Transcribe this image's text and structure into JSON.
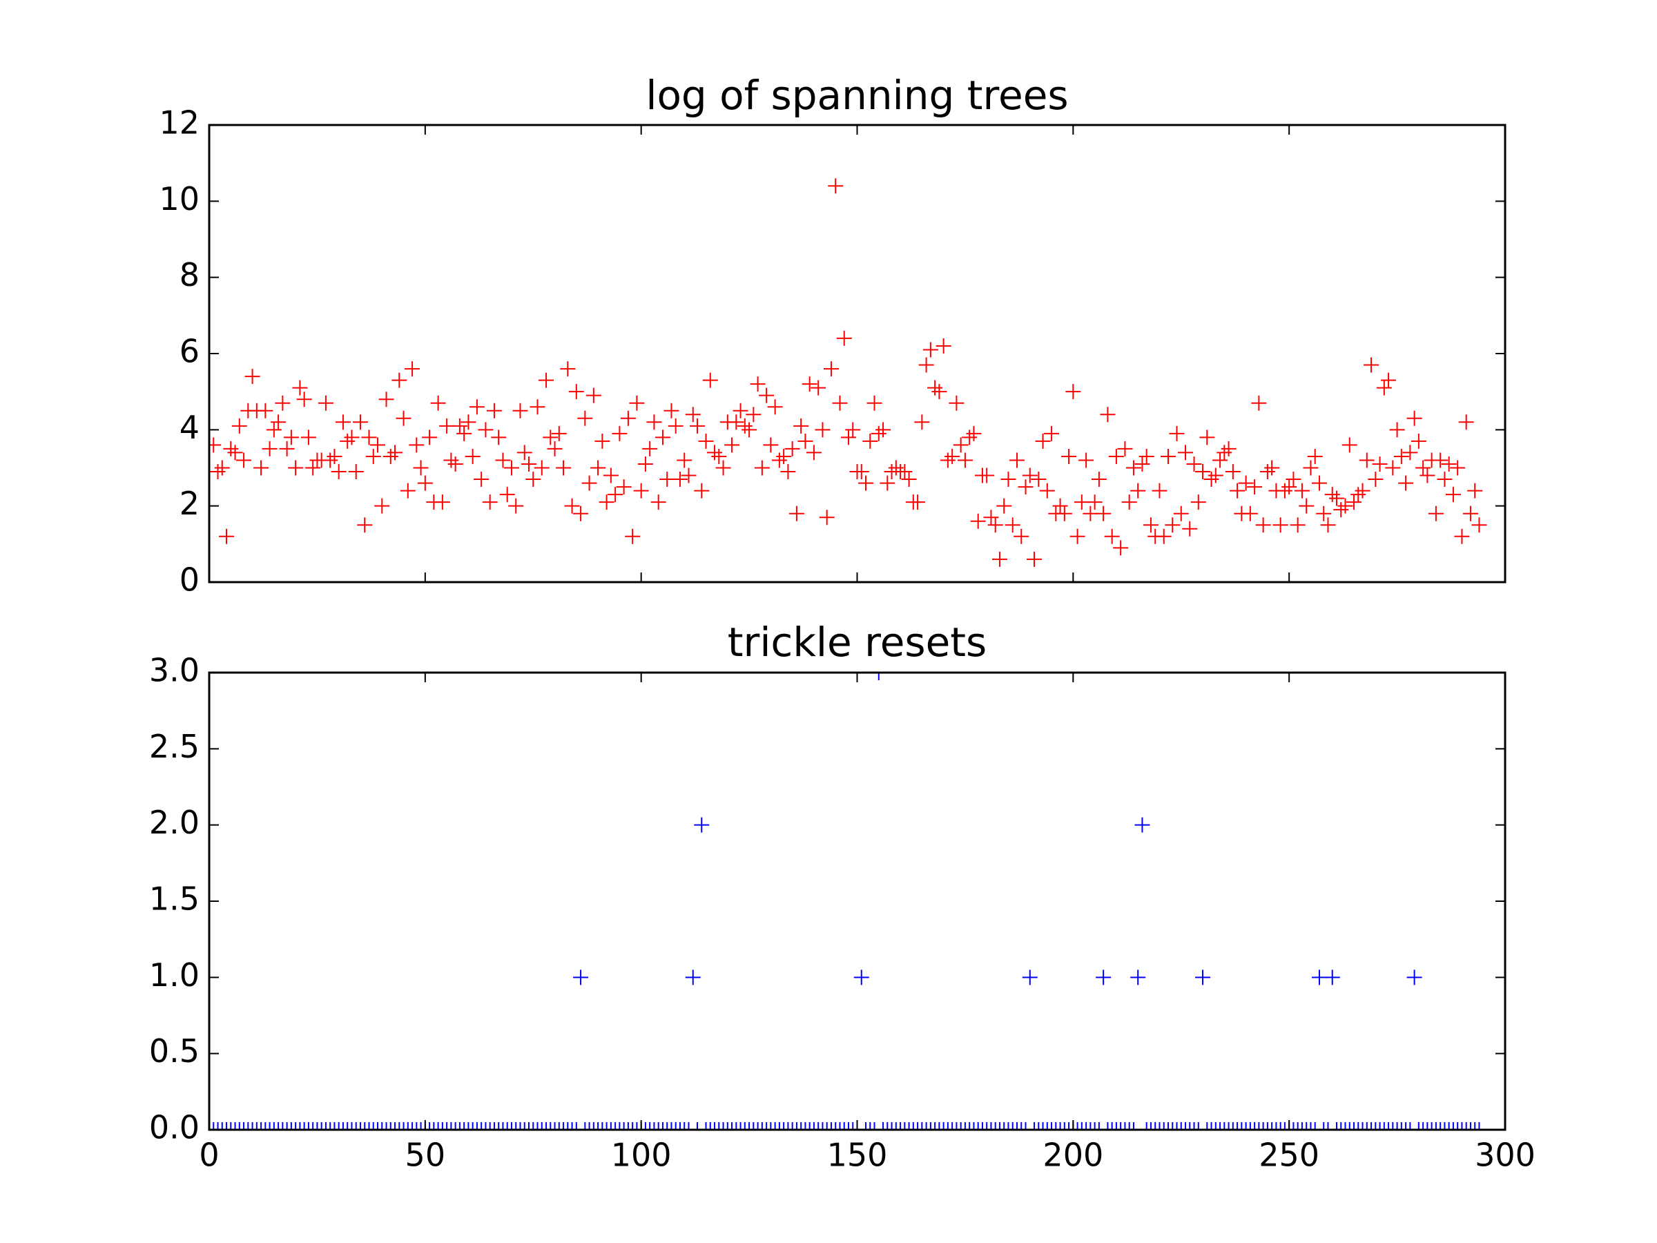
{
  "chart_data": [
    {
      "type": "scatter",
      "title": "log of spanning trees",
      "marker": "+",
      "color": "#ff0000",
      "x": [
        1,
        2,
        3,
        4,
        5,
        6,
        7,
        8,
        9,
        10,
        11,
        12,
        13,
        14,
        15,
        16,
        17,
        18,
        19,
        20,
        21,
        22,
        23,
        24,
        25,
        26,
        27,
        28,
        29,
        30,
        31,
        32,
        33,
        34,
        35,
        36,
        37,
        38,
        39,
        40,
        41,
        42,
        43,
        44,
        45,
        46,
        47,
        48,
        49,
        50,
        51,
        52,
        53,
        54,
        55,
        56,
        57,
        58,
        59,
        60,
        61,
        62,
        63,
        64,
        65,
        66,
        67,
        68,
        69,
        70,
        71,
        72,
        73,
        74,
        75,
        76,
        77,
        78,
        79,
        80,
        81,
        82,
        83,
        84,
        85,
        86,
        87,
        88,
        89,
        90,
        91,
        92,
        93,
        94,
        95,
        96,
        97,
        98,
        99,
        100,
        101,
        102,
        103,
        104,
        105,
        106,
        107,
        108,
        109,
        110,
        111,
        112,
        113,
        114,
        115,
        116,
        117,
        118,
        119,
        120,
        121,
        122,
        123,
        124,
        125,
        126,
        127,
        128,
        129,
        130,
        131,
        132,
        133,
        134,
        135,
        136,
        137,
        138,
        139,
        140,
        141,
        142,
        143,
        144,
        145,
        146,
        147,
        148,
        149,
        150,
        151,
        152,
        153,
        154,
        155,
        156,
        157,
        158,
        159,
        160,
        161,
        162,
        163,
        164,
        165,
        166,
        167,
        168,
        169,
        170,
        171,
        172,
        173,
        174,
        175,
        176,
        177,
        178,
        179,
        180,
        181,
        182,
        183,
        184,
        185,
        186,
        187,
        188,
        189,
        190,
        191,
        192,
        193,
        194,
        195,
        196,
        197,
        198,
        199,
        200,
        201,
        202,
        203,
        204,
        205,
        206,
        207,
        208,
        209,
        210,
        211,
        212,
        213,
        214,
        215,
        216,
        217,
        218,
        219,
        220,
        221,
        222,
        223,
        224,
        225,
        226,
        227,
        228,
        229,
        230,
        231,
        232,
        233,
        234,
        235,
        236,
        237,
        238,
        239,
        240,
        241,
        242,
        243,
        244,
        245,
        246,
        247,
        248,
        249,
        250,
        251,
        252,
        253,
        254,
        255,
        256,
        257,
        258,
        259,
        260,
        261,
        262,
        263,
        264,
        265,
        266,
        267,
        268,
        269,
        270,
        271,
        272,
        273,
        274,
        275,
        276,
        277,
        278,
        279,
        280,
        281,
        282,
        283,
        284,
        285,
        286,
        287,
        288,
        289,
        290,
        291,
        292,
        293,
        294
      ],
      "values": [
        3.6,
        2.9,
        3.0,
        1.2,
        3.5,
        3.4,
        4.1,
        3.2,
        4.5,
        5.4,
        4.5,
        3.0,
        4.5,
        3.5,
        4.0,
        4.2,
        4.7,
        3.5,
        3.8,
        3.0,
        5.1,
        4.8,
        3.8,
        3.0,
        3.2,
        3.2,
        4.7,
        3.2,
        3.3,
        2.9,
        4.2,
        3.7,
        3.8,
        2.9,
        4.2,
        1.5,
        3.8,
        3.3,
        3.6,
        2.0,
        4.8,
        3.3,
        3.4,
        5.3,
        4.3,
        2.4,
        5.6,
        3.6,
        3.0,
        2.6,
        3.8,
        2.1,
        4.7,
        2.1,
        4.1,
        3.2,
        3.1,
        4.1,
        3.9,
        4.2,
        3.3,
        4.6,
        2.7,
        4.0,
        2.1,
        4.5,
        3.8,
        3.2,
        2.3,
        3.0,
        2.0,
        4.5,
        3.4,
        3.1,
        2.7,
        4.6,
        3.0,
        5.3,
        3.8,
        3.5,
        3.9,
        3.0,
        5.6,
        2.0,
        5.0,
        1.8,
        4.3,
        2.6,
        4.9,
        3.0,
        3.7,
        2.1,
        2.8,
        2.3,
        3.9,
        2.5,
        4.3,
        1.2,
        4.7,
        2.4,
        3.1,
        3.5,
        4.2,
        2.1,
        3.8,
        2.7,
        4.5,
        4.1,
        2.7,
        3.2,
        2.8,
        4.4,
        4.1,
        2.4,
        3.7,
        5.3,
        3.4,
        3.3,
        3.0,
        4.2,
        3.6,
        4.2,
        4.5,
        4.1,
        4.0,
        4.4,
        5.2,
        3.0,
        4.9,
        3.6,
        4.6,
        3.2,
        3.3,
        2.9,
        3.5,
        1.8,
        4.1,
        3.7,
        5.2,
        3.4,
        5.1,
        4.0,
        1.7,
        5.6,
        10.4,
        4.7,
        6.4,
        3.8,
        4.0,
        2.9,
        2.9,
        2.6,
        3.7,
        4.7,
        3.9,
        4.0,
        2.6,
        2.9,
        3.0,
        2.9,
        2.9,
        2.7,
        2.1,
        2.1,
        4.2,
        5.7,
        6.1,
        5.1,
        5.0,
        6.2,
        3.2,
        3.3,
        4.7,
        3.6,
        3.2,
        3.8,
        3.9,
        1.6,
        2.8,
        2.8,
        1.7,
        1.5,
        0.6,
        2.0,
        2.7,
        1.5,
        3.2,
        1.2,
        2.5,
        2.8,
        0.6,
        2.7,
        3.7,
        2.4,
        3.9,
        1.8,
        2.0,
        1.8,
        3.3,
        5.0,
        1.2,
        2.1,
        3.2,
        1.8,
        2.1,
        2.7,
        1.8,
        4.4,
        1.2,
        3.3,
        0.9,
        3.5,
        2.1,
        3.0,
        2.4,
        3.1,
        3.3,
        1.5,
        1.2,
        2.4,
        1.2,
        3.3,
        1.5,
        3.9,
        1.8,
        3.4,
        1.4,
        3.1,
        2.1,
        2.9,
        3.8,
        2.7,
        2.8,
        3.2,
        3.4,
        3.5,
        2.9,
        2.4,
        1.8,
        2.6,
        1.8,
        2.5,
        4.7,
        1.5,
        2.9,
        3.0,
        2.4,
        1.5,
        2.4,
        2.5,
        2.7,
        1.5,
        2.4,
        2.0,
        3.0,
        3.3,
        2.6,
        1.8,
        1.5,
        2.3,
        2.2,
        1.9,
        2.0,
        3.6,
        2.1,
        2.3,
        2.4,
        3.2,
        5.7,
        2.7,
        3.1,
        5.1,
        5.3,
        3.0,
        4.0,
        3.3,
        2.6,
        3.4,
        4.3,
        3.7,
        3.0,
        2.8,
        3.2,
        1.8,
        3.2,
        2.7,
        3.1,
        2.3,
        3.0,
        1.2,
        4.2,
        1.8,
        2.4,
        1.5
      ],
      "xlim": [
        0,
        300
      ],
      "xticks": [
        0,
        50,
        100,
        150,
        200,
        250,
        300
      ],
      "xtick_labels": false,
      "ylim": [
        0,
        12
      ],
      "yticks": [
        0,
        2,
        4,
        6,
        8,
        10,
        12
      ]
    },
    {
      "type": "scatter",
      "title": "trickle resets",
      "marker": "+",
      "color": "#0000ff",
      "x": [
        1,
        2,
        3,
        4,
        5,
        6,
        7,
        8,
        9,
        10,
        11,
        12,
        13,
        14,
        15,
        16,
        17,
        18,
        19,
        20,
        21,
        22,
        23,
        24,
        25,
        26,
        27,
        28,
        29,
        30,
        31,
        32,
        33,
        34,
        35,
        36,
        37,
        38,
        39,
        40,
        41,
        42,
        43,
        44,
        45,
        46,
        47,
        48,
        49,
        50,
        51,
        52,
        53,
        54,
        55,
        56,
        57,
        58,
        59,
        60,
        61,
        62,
        63,
        64,
        65,
        66,
        67,
        68,
        69,
        70,
        71,
        72,
        73,
        74,
        75,
        76,
        77,
        78,
        79,
        80,
        81,
        82,
        83,
        84,
        85,
        86,
        87,
        88,
        89,
        90,
        91,
        92,
        93,
        94,
        95,
        96,
        97,
        98,
        99,
        100,
        101,
        102,
        103,
        104,
        105,
        106,
        107,
        108,
        109,
        110,
        111,
        112,
        113,
        114,
        115,
        116,
        117,
        118,
        119,
        120,
        121,
        122,
        123,
        124,
        125,
        126,
        127,
        128,
        129,
        130,
        131,
        132,
        133,
        134,
        135,
        136,
        137,
        138,
        139,
        140,
        141,
        142,
        143,
        144,
        145,
        146,
        147,
        148,
        149,
        150,
        151,
        152,
        153,
        154,
        155,
        156,
        157,
        158,
        159,
        160,
        161,
        162,
        163,
        164,
        165,
        166,
        167,
        168,
        169,
        170,
        171,
        172,
        173,
        174,
        175,
        176,
        177,
        178,
        179,
        180,
        181,
        182,
        183,
        184,
        185,
        186,
        187,
        188,
        189,
        190,
        191,
        192,
        193,
        194,
        195,
        196,
        197,
        198,
        199,
        200,
        201,
        202,
        203,
        204,
        205,
        206,
        207,
        208,
        209,
        210,
        211,
        212,
        213,
        214,
        215,
        216,
        217,
        218,
        219,
        220,
        221,
        222,
        223,
        224,
        225,
        226,
        227,
        228,
        229,
        230,
        231,
        232,
        233,
        234,
        235,
        236,
        237,
        238,
        239,
        240,
        241,
        242,
        243,
        244,
        245,
        246,
        247,
        248,
        249,
        250,
        251,
        252,
        253,
        254,
        255,
        256,
        257,
        258,
        259,
        260,
        261,
        262,
        263,
        264,
        265,
        266,
        267,
        268,
        269,
        270,
        271,
        272,
        273,
        274,
        275,
        276,
        277,
        278,
        279,
        280,
        281,
        282,
        283,
        284,
        285,
        286,
        287,
        288,
        289,
        290,
        291,
        292,
        293,
        294
      ],
      "values": [
        0,
        0,
        0,
        0,
        0,
        0,
        0,
        0,
        0,
        0,
        0,
        0,
        0,
        0,
        0,
        0,
        0,
        0,
        0,
        0,
        0,
        0,
        0,
        0,
        0,
        0,
        0,
        0,
        0,
        0,
        0,
        0,
        0,
        0,
        0,
        0,
        0,
        0,
        0,
        0,
        0,
        0,
        0,
        0,
        0,
        0,
        0,
        0,
        0,
        0,
        0,
        0,
        0,
        0,
        0,
        0,
        0,
        0,
        0,
        0,
        0,
        0,
        0,
        0,
        0,
        0,
        0,
        0,
        0,
        0,
        0,
        0,
        0,
        0,
        0,
        0,
        0,
        0,
        0,
        0,
        0,
        0,
        0,
        0,
        0,
        1,
        0,
        0,
        0,
        0,
        0,
        0,
        0,
        0,
        0,
        0,
        0,
        0,
        0,
        0,
        0,
        0,
        0,
        0,
        0,
        0,
        0,
        0,
        0,
        0,
        0,
        1,
        0,
        2,
        0,
        0,
        0,
        0,
        0,
        0,
        0,
        0,
        0,
        0,
        0,
        0,
        0,
        0,
        0,
        0,
        0,
        0,
        0,
        0,
        0,
        0,
        0,
        0,
        0,
        0,
        0,
        0,
        0,
        0,
        0,
        0,
        0,
        0,
        0,
        0,
        1,
        0,
        0,
        0,
        3,
        0,
        0,
        0,
        0,
        0,
        0,
        0,
        0,
        0,
        0,
        0,
        0,
        0,
        0,
        0,
        0,
        0,
        0,
        0,
        0,
        0,
        0,
        0,
        0,
        0,
        0,
        0,
        0,
        0,
        0,
        0,
        0,
        0,
        0,
        1,
        0,
        0,
        0,
        0,
        0,
        0,
        0,
        0,
        0,
        0,
        0,
        0,
        0,
        0,
        0,
        0,
        1,
        0,
        0,
        0,
        0,
        0,
        0,
        0,
        1,
        2,
        0,
        0,
        0,
        0,
        0,
        0,
        0,
        0,
        0,
        0,
        0,
        0,
        0,
        1,
        0,
        0,
        0,
        0,
        0,
        0,
        0,
        0,
        0,
        0,
        0,
        0,
        0,
        0,
        0,
        0,
        0,
        0,
        0,
        0,
        0,
        0,
        0,
        0,
        0,
        0,
        1,
        0,
        0,
        1,
        0,
        0,
        0,
        0,
        0,
        0,
        0,
        0,
        0,
        0,
        0,
        0,
        0,
        0,
        0,
        0,
        0,
        0,
        1,
        0,
        0,
        0,
        0,
        0,
        0,
        0,
        0,
        0,
        0,
        0,
        0,
        0,
        0,
        0
      ],
      "xlim": [
        0,
        300
      ],
      "xticks": [
        0,
        50,
        100,
        150,
        200,
        250,
        300
      ],
      "xtick_labels": true,
      "ylim": [
        0,
        3
      ],
      "yticks": [
        {
          "value": 0,
          "label": "0.0"
        },
        0.5,
        {
          "value": 1,
          "label": "1.0"
        },
        1.5,
        {
          "value": 2,
          "label": "2.0"
        },
        2.5,
        {
          "value": 3,
          "label": "3.0"
        }
      ]
    }
  ]
}
